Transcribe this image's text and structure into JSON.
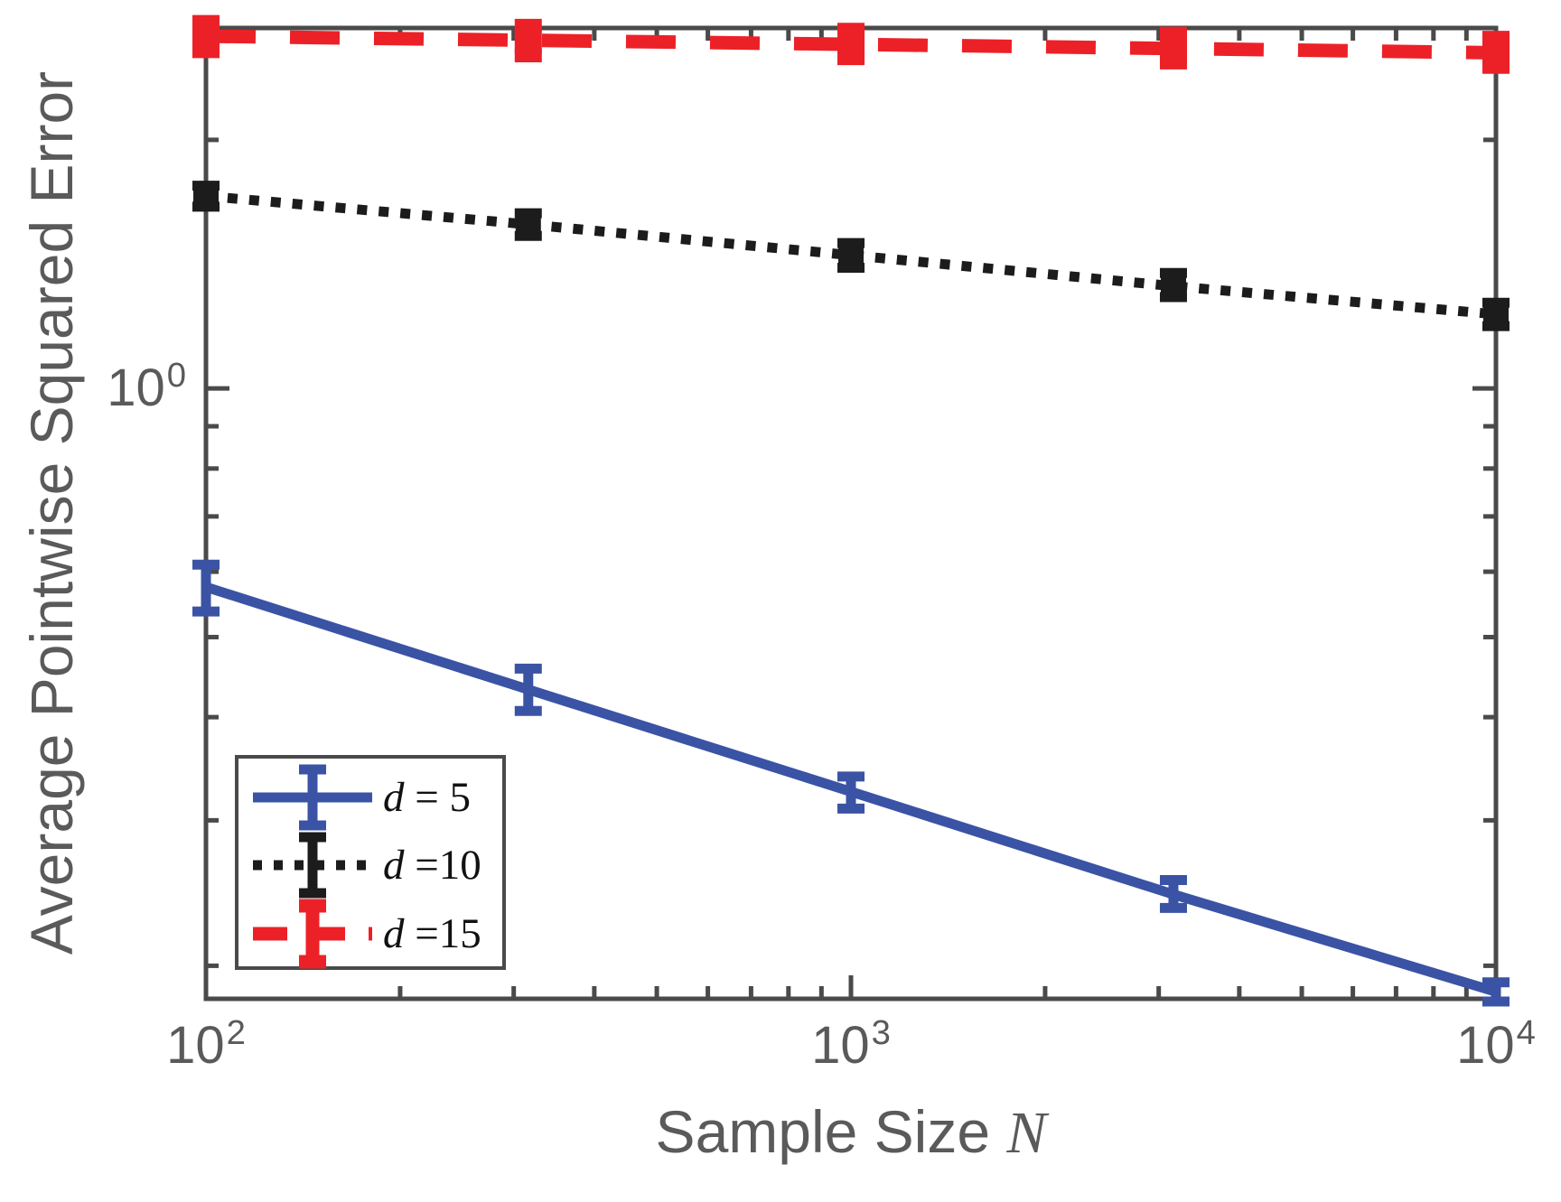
{
  "figure": {
    "title": "",
    "background": "#ffffff"
  },
  "colors": {
    "axis": "#4A4A4A",
    "text": "#5A5A5A",
    "legend_border": "#4A4A4A",
    "legend_background": "#ffffff"
  },
  "chart_data": {
    "type": "line",
    "x_scale": "log",
    "y_scale": "log",
    "title": "",
    "xlabel": "Sample Size N",
    "xlabel_parts": {
      "text": "Sample Size ",
      "variable": "N"
    },
    "ylabel": "Average Pointwise Squared Error",
    "xlim": [
      100,
      10000
    ],
    "ylim": [
      0.1824,
      2.732
    ],
    "grid": false,
    "x": [
      100,
      316,
      1000,
      3162,
      10000
    ],
    "x_ticks": [
      {
        "base": "10",
        "exp": "2",
        "value": 100
      },
      {
        "base": "10",
        "exp": "3",
        "value": 1000
      },
      {
        "base": "10",
        "exp": "4",
        "value": 10000
      }
    ],
    "y_ticks": [
      {
        "base": "10",
        "exp": "0",
        "value": 1
      }
    ],
    "legend": {
      "position": "lower-left",
      "border": true
    },
    "series": [
      {
        "name": "d = 5",
        "label_var": "d",
        "label_rest": " = 5",
        "color": "#3A53A4",
        "line_style": "solid",
        "line_width": 11,
        "marker": "none",
        "marker_size": 0,
        "values": [
          0.575,
          0.432,
          0.325,
          0.244,
          0.186
        ],
        "err_lo": [
          0.537,
          0.407,
          0.31,
          0.235,
          0.181
        ],
        "err_hi": [
          0.612,
          0.458,
          0.339,
          0.254,
          0.191
        ]
      },
      {
        "name": "d =10",
        "label_var": "d",
        "label_rest": " =10",
        "color": "#1C1C1C",
        "line_style": "dotted",
        "line_width": 11,
        "marker": "square",
        "marker_size": 28,
        "values": [
          1.71,
          1.58,
          1.45,
          1.33,
          1.23
        ],
        "err_lo": [
          1.66,
          1.53,
          1.4,
          1.29,
          1.19
        ],
        "err_hi": [
          1.76,
          1.63,
          1.5,
          1.38,
          1.27
        ]
      },
      {
        "name": "d =15",
        "label_var": "d",
        "label_rest": " =15",
        "color": "#EC2127",
        "line_style": "dashed",
        "line_width": 15,
        "marker": "square",
        "marker_size": 30,
        "values": [
          2.67,
          2.64,
          2.61,
          2.58,
          2.55
        ],
        "err_lo": [
          2.56,
          2.53,
          2.51,
          2.48,
          2.45
        ],
        "err_hi": [
          2.78,
          2.75,
          2.72,
          2.69,
          2.66
        ]
      }
    ]
  }
}
